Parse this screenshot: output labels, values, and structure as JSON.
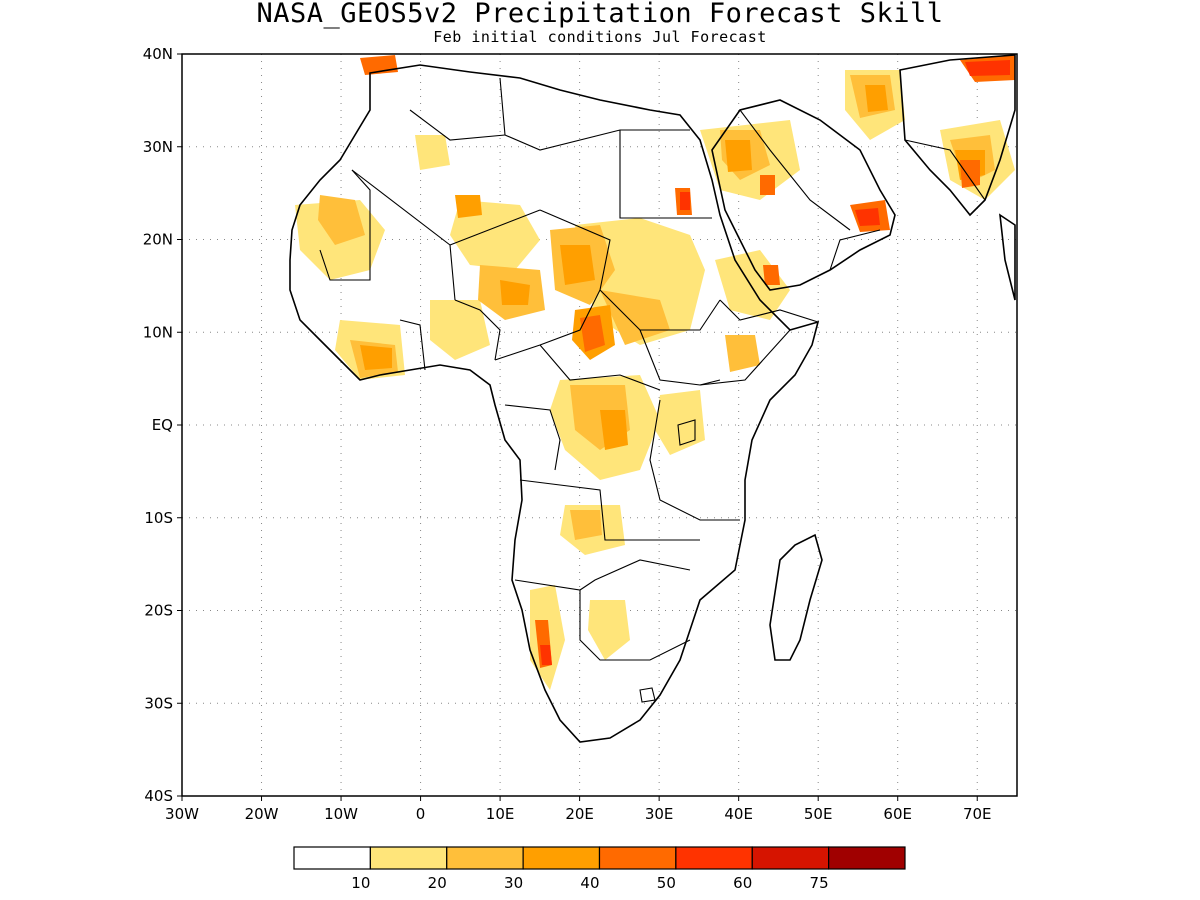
{
  "title": "NASA_GEOS5v2 Precipitation Forecast Skill",
  "subtitle": "Feb initial conditions  Jul Forecast",
  "map": {
    "lon_range": [
      -30,
      75
    ],
    "lat_range": [
      -40,
      40
    ],
    "lat_ticks": [
      {
        "value": 40,
        "label": "40N"
      },
      {
        "value": 30,
        "label": "30N"
      },
      {
        "value": 20,
        "label": "20N"
      },
      {
        "value": 10,
        "label": "10N"
      },
      {
        "value": 0,
        "label": "EQ"
      },
      {
        "value": -10,
        "label": "10S"
      },
      {
        "value": -20,
        "label": "20S"
      },
      {
        "value": -30,
        "label": "30S"
      },
      {
        "value": -40,
        "label": "40S"
      }
    ],
    "lon_ticks": [
      {
        "value": -30,
        "label": "30W"
      },
      {
        "value": -20,
        "label": "20W"
      },
      {
        "value": -10,
        "label": "10W"
      },
      {
        "value": 0,
        "label": "0"
      },
      {
        "value": 10,
        "label": "10E"
      },
      {
        "value": 20,
        "label": "20E"
      },
      {
        "value": 30,
        "label": "30E"
      },
      {
        "value": 40,
        "label": "40E"
      },
      {
        "value": 50,
        "label": "50E"
      },
      {
        "value": 60,
        "label": "60E"
      },
      {
        "value": 70,
        "label": "70E"
      }
    ],
    "grid": "dotted"
  },
  "colorbar": {
    "colors": [
      "#ffffff",
      "#ffe57a",
      "#ffbf3a",
      "#ff9f00",
      "#ff6a00",
      "#ff3300",
      "#d61400",
      "#a00000"
    ],
    "labels": [
      "10",
      "20",
      "30",
      "40",
      "50",
      "60",
      "75"
    ]
  }
}
